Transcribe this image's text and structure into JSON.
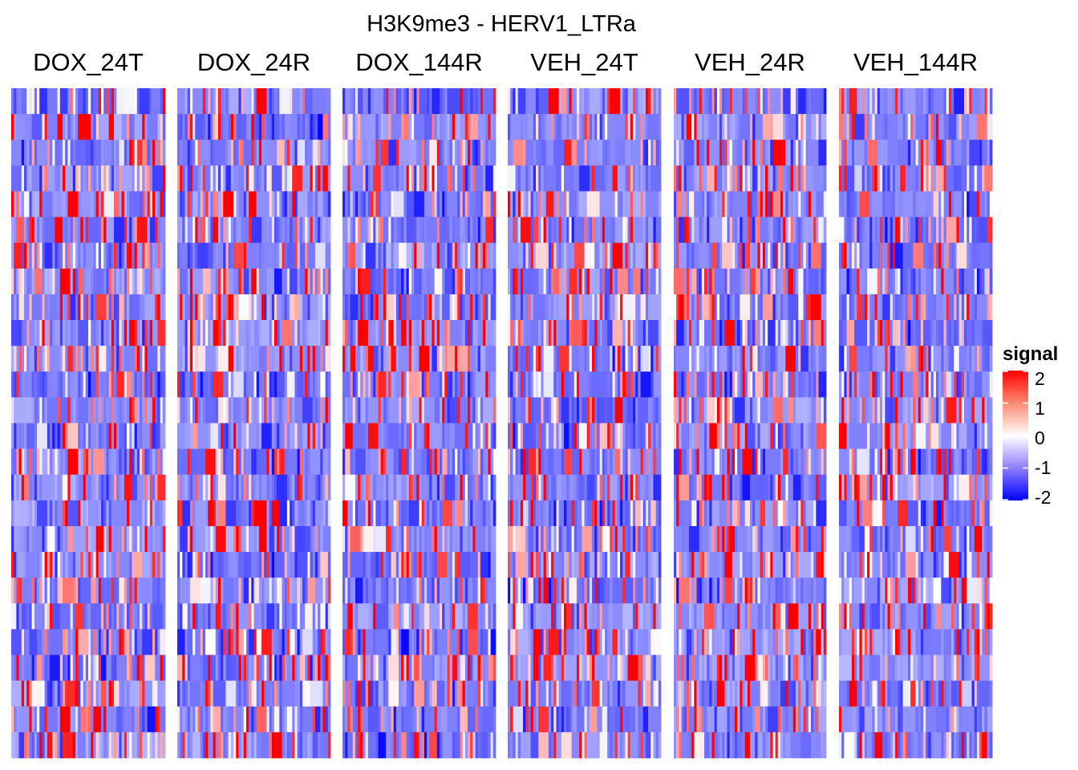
{
  "chart_data": {
    "type": "heatmap",
    "title": "H3K9me3 - HERV1_LTRa",
    "panels": [
      "DOX_24T",
      "DOX_24R",
      "DOX_144R",
      "VEH_24T",
      "VEH_24R",
      "VEH_144R"
    ],
    "rows": 26,
    "columns_per_panel": 60,
    "value_range": [
      -2,
      2
    ],
    "colorscale": {
      "low": "#0000ff",
      "mid": "#ffffff",
      "high": "#ff0000"
    },
    "legend": {
      "title": "signal",
      "ticks": [
        2,
        1,
        0,
        -1,
        -2
      ],
      "tick_labels": [
        "2",
        "1",
        "0",
        "-1",
        "-2"
      ]
    },
    "note": "Per-cell signal values are not printed in the figure; visual distribution is mostly -1 (light purple) with scattered red (+1 to +2) cells."
  }
}
